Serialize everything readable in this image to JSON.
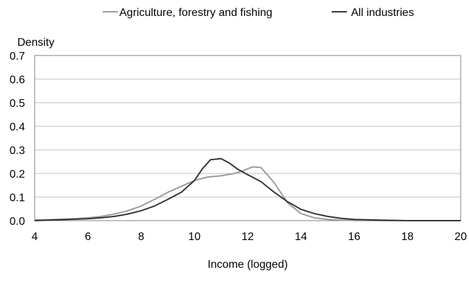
{
  "chart_data": {
    "type": "line",
    "title": "",
    "xlabel": "Income (logged)",
    "ylabel": "Density",
    "xlim": [
      4,
      20
    ],
    "ylim": [
      0,
      0.7
    ],
    "xticks": [
      4,
      6,
      8,
      10,
      12,
      14,
      16,
      18,
      20
    ],
    "yticks": [
      "0.0",
      "0.1",
      "0.2",
      "0.3",
      "0.4",
      "0.5",
      "0.6",
      "0.7"
    ],
    "grid": "horizontal",
    "legend_position": "top-right",
    "series": [
      {
        "name": "Agriculture, forestry and fishing",
        "color": "#9a9a9a",
        "x": [
          4.0,
          4.5,
          5.0,
          5.5,
          6.0,
          6.5,
          7.0,
          7.5,
          8.0,
          8.5,
          9.0,
          9.5,
          10.0,
          10.5,
          11.0,
          11.5,
          11.8,
          12.0,
          12.2,
          12.5,
          13.0,
          13.5,
          14.0,
          14.5,
          15.0,
          15.5,
          16.0,
          17.0,
          18.0,
          20.0
        ],
        "y": [
          0.003,
          0.004,
          0.006,
          0.008,
          0.012,
          0.018,
          0.028,
          0.042,
          0.062,
          0.09,
          0.12,
          0.145,
          0.17,
          0.185,
          0.19,
          0.2,
          0.21,
          0.22,
          0.228,
          0.225,
          0.16,
          0.075,
          0.03,
          0.012,
          0.005,
          0.002,
          0.001,
          0.0,
          0.0,
          0.0
        ]
      },
      {
        "name": "All industries",
        "color": "#333333",
        "x": [
          4.0,
          4.5,
          5.0,
          5.5,
          6.0,
          6.5,
          7.0,
          7.5,
          8.0,
          8.5,
          9.0,
          9.5,
          10.0,
          10.3,
          10.6,
          11.0,
          11.3,
          11.6,
          12.0,
          12.5,
          13.0,
          13.5,
          14.0,
          14.5,
          15.0,
          15.5,
          16.0,
          17.0,
          18.0,
          20.0
        ],
        "y": [
          0.0,
          0.002,
          0.004,
          0.006,
          0.008,
          0.012,
          0.018,
          0.028,
          0.042,
          0.062,
          0.09,
          0.12,
          0.17,
          0.22,
          0.258,
          0.263,
          0.245,
          0.22,
          0.195,
          0.165,
          0.12,
          0.08,
          0.048,
          0.03,
          0.018,
          0.01,
          0.005,
          0.002,
          0.0,
          0.0
        ]
      }
    ]
  }
}
